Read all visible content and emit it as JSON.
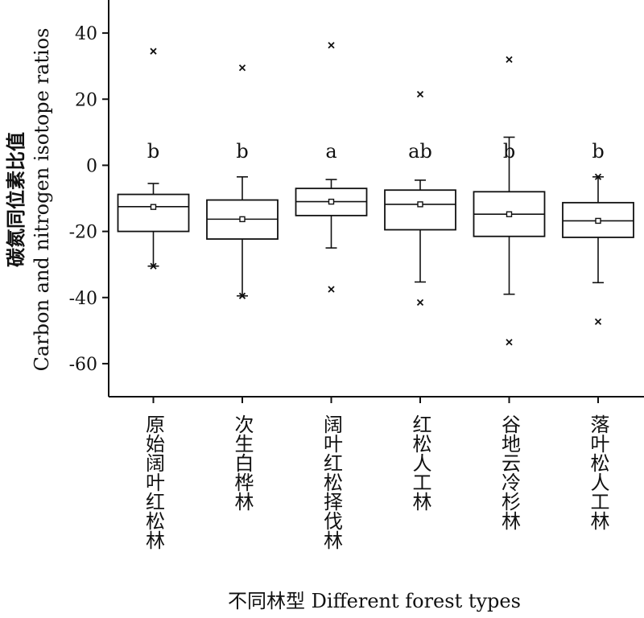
{
  "chart_data": {
    "type": "box",
    "ylabel_cn": "碳氮同位素比值",
    "ylabel_en": "Carbon and nitrogen isotope ratios",
    "xlabel": "不同林型 Different forest types",
    "ylim": [
      -70,
      50
    ],
    "yticks": [
      40,
      20,
      0,
      -20,
      -40,
      -60
    ],
    "ytick_labels": [
      "40",
      "20",
      "0",
      "-20",
      "-40",
      "-60"
    ],
    "grid": false,
    "categories": [
      "原始阔叶红松林",
      "次生白桦林",
      "阔叶红松择伐林",
      "红松人工林",
      "谷地云冷杉林",
      "落叶松人工林"
    ],
    "boxes": [
      {
        "q1": -20,
        "median": -12.5,
        "q3": -8.8,
        "mean": -12.6,
        "whisker_low": -30.5,
        "whisker_high": -5.5,
        "outliers": [
          34.5,
          -30.5
        ],
        "sig": "b"
      },
      {
        "q1": -22.3,
        "median": -16.3,
        "q3": -10.5,
        "mean": -16.3,
        "whisker_low": -39.5,
        "whisker_high": -3.5,
        "outliers": [
          29.5,
          -39.5
        ],
        "sig": "b"
      },
      {
        "q1": -15.2,
        "median": -11,
        "q3": -7,
        "mean": -11,
        "whisker_low": -25,
        "whisker_high": -4.3,
        "outliers": [
          36.3,
          -37.5
        ],
        "sig": "a"
      },
      {
        "q1": -19.5,
        "median": -11.8,
        "q3": -7.5,
        "mean": -11.8,
        "whisker_low": -35.3,
        "whisker_high": -4.5,
        "outliers": [
          21.5,
          -41.5
        ],
        "sig": "ab"
      },
      {
        "q1": -21.5,
        "median": -14.8,
        "q3": -8,
        "mean": -14.8,
        "whisker_low": -39,
        "whisker_high": 8.5,
        "outliers": [
          32,
          -53.5
        ],
        "sig": "b"
      },
      {
        "q1": -21.8,
        "median": -16.8,
        "q3": -11.3,
        "mean": -16.8,
        "whisker_low": -35.5,
        "whisker_high": -3.5,
        "outliers": [
          -3.5,
          -47.3
        ],
        "sig": "b"
      }
    ]
  }
}
